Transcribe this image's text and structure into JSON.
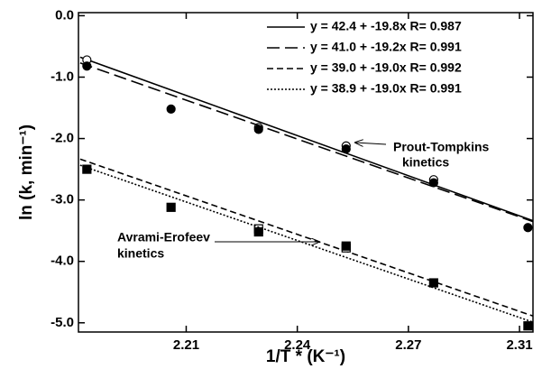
{
  "chart_data": {
    "type": "scatter",
    "xlabel": "1/T * (K⁻¹)",
    "ylabel": "ln (k, min⁻¹)",
    "xlim": [
      2.175,
      2.31
    ],
    "ylim": [
      -5.15,
      0.05
    ],
    "xticks": [
      {
        "value": 2.207,
        "label": "2.21"
      },
      {
        "value": 2.24,
        "label": "2.24"
      },
      {
        "value": 2.273,
        "label": "2.27"
      },
      {
        "value": 2.306,
        "label": "2.31"
      }
    ],
    "yticks": [
      {
        "value": 0,
        "label": "0.0"
      },
      {
        "value": -1,
        "label": "-1.0"
      },
      {
        "value": -2,
        "label": "-2.0"
      },
      {
        "value": -3,
        "label": "-3.0"
      },
      {
        "value": -4,
        "label": "-4.0"
      },
      {
        "value": -5,
        "label": "-5.0"
      }
    ],
    "x": [
      2.1775,
      2.2025,
      2.2285,
      2.2545,
      2.2805,
      2.3085
    ],
    "series": [
      {
        "name": "y = 42.4 + -19.8x R= 0.987",
        "intercept": 42.4,
        "slope": -19.8,
        "dash": "none",
        "marker": "open-circle",
        "color": "#000000",
        "values": [
          -0.72,
          null,
          -1.82,
          -2.12,
          -2.67,
          null
        ]
      },
      {
        "name": "y = 41.0 + -19.2x R= 0.991",
        "intercept": 41.0,
        "slope": -19.2,
        "dash": "14 6",
        "marker": "filled-circle",
        "color": "#000000",
        "values": [
          -0.82,
          -1.52,
          -1.85,
          -2.17,
          -2.72,
          -3.45
        ]
      },
      {
        "name": "y = 39.0 + -19.0x R= 0.992",
        "intercept": 39.0,
        "slope": -19.0,
        "dash": "7 4",
        "marker": "open-square",
        "color": "#000000",
        "values": [
          null,
          null,
          -3.47,
          -3.78,
          null,
          null
        ]
      },
      {
        "name": "y = 38.9 + -19.0x R= 0.991",
        "intercept": 38.9,
        "slope": -19.0,
        "dash": "2 2",
        "marker": "filled-square",
        "color": "#000000",
        "values": [
          -2.5,
          -3.12,
          -3.52,
          -3.75,
          -4.35,
          -5.05
        ]
      }
    ],
    "annotations": [
      "Prout-Tompkins",
      "kinetics",
      "Avrami-Erofeev",
      "kinetics"
    ]
  }
}
